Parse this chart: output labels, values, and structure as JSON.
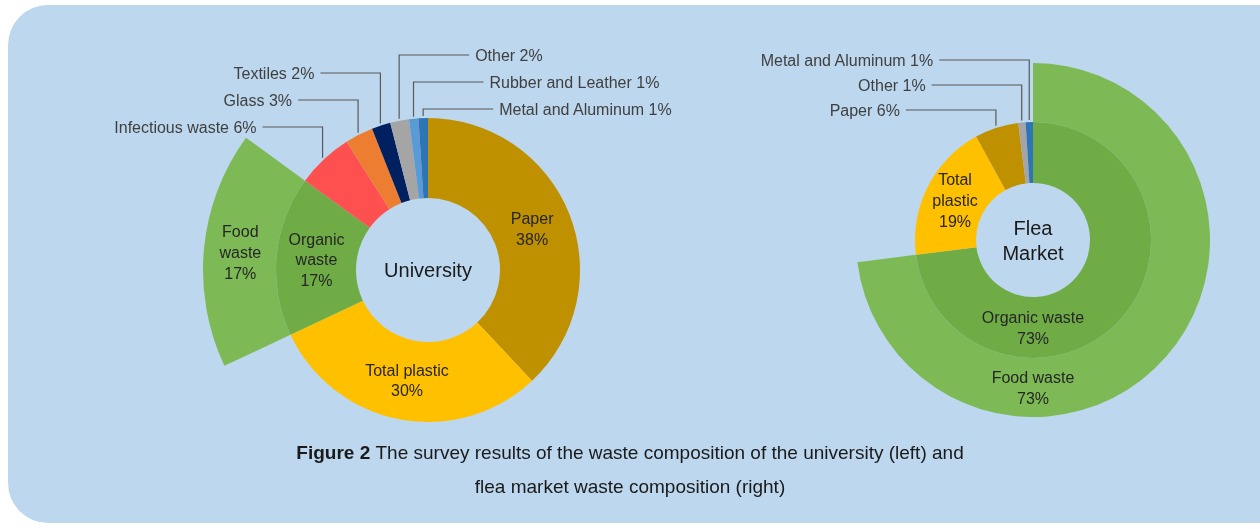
{
  "chart_data": [
    {
      "type": "donut",
      "title": "University",
      "categories": [
        "Paper",
        "Total plastic",
        "Organic waste",
        "Infectious waste",
        "Glass",
        "Textiles",
        "Other",
        "Rubber and Leather",
        "Metal and Aluminum"
      ],
      "series": [
        {
          "colors": [
            "#bf9000",
            "#ffc000",
            "#6fac46",
            "#ff5050",
            "#ed7d31",
            "#002060",
            "#a5a5a5",
            "#5b9bd5",
            "#2e75b6"
          ],
          "values": [
            38,
            30,
            17,
            6,
            3,
            2,
            2,
            1,
            1
          ],
          "value_labels": [
            "38%",
            "30%",
            "17%",
            "6%",
            "3%",
            "2%",
            "2%",
            "1%",
            "1%"
          ]
        },
        {
          "name": "Food waste",
          "color": "#7db955",
          "values": [
            null,
            null,
            17,
            null,
            null,
            null,
            null,
            null,
            null
          ],
          "value_labels": [
            null,
            null,
            "17%",
            null,
            null,
            null,
            null,
            null,
            null
          ]
        }
      ],
      "annotations": [
        "Figure 2",
        "The survey results of the waste composition of the university (left) and flea market waste composition (right)"
      ]
    },
    {
      "type": "donut",
      "title": "Flea Market",
      "categories": [
        "Organic waste",
        "Total plastic",
        "Paper",
        "Other",
        "Metal and Aluminum"
      ],
      "series": [
        {
          "colors": [
            "#6fac46",
            "#ffc000",
            "#bf9000",
            "#a5a5a5",
            "#2e75b6"
          ],
          "values": [
            73,
            19,
            6,
            1,
            1
          ],
          "value_labels": [
            "73%",
            "19%",
            "6%",
            "1%",
            "1%"
          ]
        },
        {
          "name": "Food waste",
          "color": "#7db955",
          "values": [
            73,
            null,
            null,
            null,
            null
          ],
          "value_labels": [
            "73%",
            null,
            null,
            null,
            null
          ]
        }
      ]
    }
  ]
}
